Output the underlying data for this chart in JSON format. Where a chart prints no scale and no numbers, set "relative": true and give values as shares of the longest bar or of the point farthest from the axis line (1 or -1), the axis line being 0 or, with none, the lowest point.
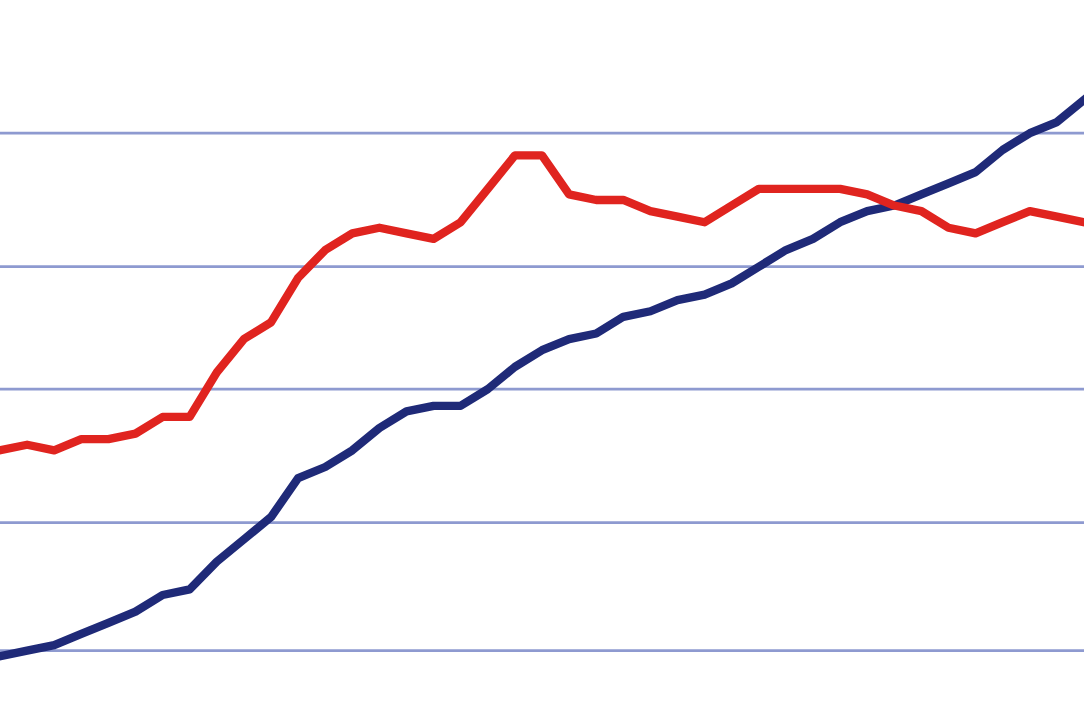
{
  "chart_data": {
    "type": "line",
    "relative": true,
    "ref_lines": [
      {
        "axis": "y",
        "value": 0.01,
        "color": "#8e9ad0"
      },
      {
        "axis": "y",
        "value": 0.24,
        "color": "#8e9ad0"
      },
      {
        "axis": "y",
        "value": 0.48,
        "color": "#8e9ad0"
      },
      {
        "axis": "y",
        "value": 0.7,
        "color": "#8e9ad0"
      },
      {
        "axis": "y",
        "value": 0.94,
        "color": "#8e9ad0"
      }
    ],
    "legend": false,
    "marker": "none",
    "line_style": "solid",
    "tick_labels": false,
    "categories": [
      null,
      null,
      null,
      null,
      null,
      null,
      null,
      null,
      null,
      null,
      null,
      null,
      null,
      null,
      null,
      null,
      null,
      null,
      null,
      null,
      null,
      null,
      null,
      null,
      null,
      null,
      null,
      null,
      null,
      null,
      null,
      null,
      null,
      null,
      null,
      null,
      null,
      null,
      null,
      null,
      null
    ],
    "series": [
      {
        "color": "#1f2a78",
        "values": [
          0,
          0.01,
          0.02,
          0.04,
          0.06,
          0.08,
          0.11,
          0.12,
          0.17,
          0.21,
          0.25,
          0.32,
          0.34,
          0.37,
          0.41,
          0.44,
          0.45,
          0.45,
          0.48,
          0.52,
          0.55,
          0.57,
          0.58,
          0.61,
          0.62,
          0.64,
          0.65,
          0.67,
          0.7,
          0.73,
          0.75,
          0.78,
          0.8,
          0.81,
          0.83,
          0.85,
          0.87,
          0.91,
          0.94,
          0.96,
          1
        ]
      },
      {
        "color": "#e0241f",
        "values": [
          0.37,
          0.38,
          0.37,
          0.39,
          0.39,
          0.4,
          0.43,
          0.43,
          0.51,
          0.57,
          0.6,
          0.68,
          0.73,
          0.76,
          0.77,
          0.76,
          0.75,
          0.78,
          0.84,
          0.9,
          0.9,
          0.83,
          0.82,
          0.82,
          0.8,
          0.79,
          0.78,
          0.81,
          0.84,
          0.84,
          0.84,
          0.84,
          0.83,
          0.81,
          0.8,
          0.77,
          0.76,
          0.78,
          0.8,
          0.79,
          0.78
        ]
      }
    ]
  }
}
